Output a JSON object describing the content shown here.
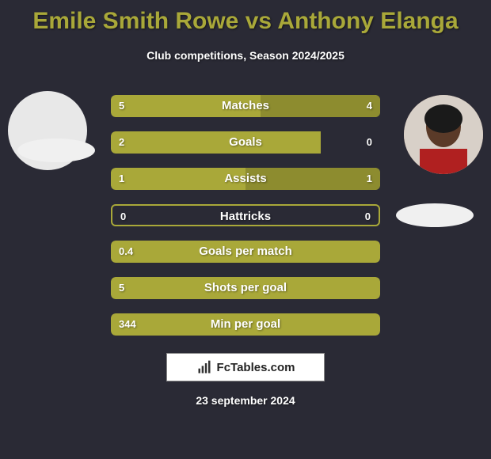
{
  "title": {
    "player1": "Emile Smith Rowe",
    "vs": "vs",
    "player2": "Anthony Elanga",
    "color": "#a9a839"
  },
  "subtitle": "Club competitions, Season 2024/2025",
  "stats": [
    {
      "label": "Matches",
      "left_val": "5",
      "right_val": "4",
      "left_pct": 55.5,
      "right_pct": 44.5,
      "bg_full": true
    },
    {
      "label": "Goals",
      "left_val": "2",
      "right_val": "0",
      "left_pct": 78,
      "right_pct": 0,
      "bg_full": false
    },
    {
      "label": "Assists",
      "left_val": "1",
      "right_val": "1",
      "left_pct": 50,
      "right_pct": 50,
      "bg_full": true
    },
    {
      "label": "Hattricks",
      "left_val": "0",
      "right_val": "0",
      "left_pct": 0,
      "right_pct": 0,
      "bg_full": false,
      "outline": true
    },
    {
      "label": "Goals per match",
      "left_val": "0.4",
      "right_val": "",
      "left_pct": 100,
      "right_pct": 0,
      "bg_full": true
    },
    {
      "label": "Shots per goal",
      "left_val": "5",
      "right_val": "",
      "left_pct": 100,
      "right_pct": 0,
      "bg_full": true
    },
    {
      "label": "Min per goal",
      "left_val": "344",
      "right_val": "",
      "left_pct": 100,
      "right_pct": 0,
      "bg_full": true
    }
  ],
  "colors": {
    "bar_fill": "#a9a839",
    "bar_fill_dark": "#8d8c2f",
    "bar_outline": "#a9a839",
    "background": "#2a2a35",
    "text": "#ffffff"
  },
  "logo_text": "FcTables.com",
  "date": "23 september 2024"
}
